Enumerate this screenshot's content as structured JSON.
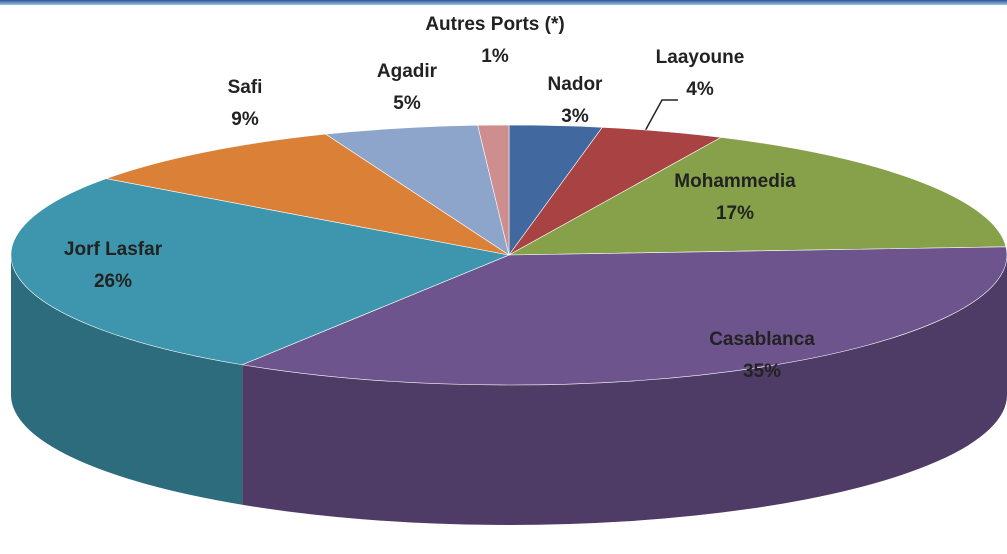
{
  "chart_data": {
    "type": "pie",
    "categories": [
      "Nador",
      "Laayoune",
      "Mohammedia",
      "Casablanca",
      "Jorf Lasfar",
      "Safi",
      "Agadir",
      "Autres Ports (*)"
    ],
    "values": [
      3,
      4,
      17,
      35,
      26,
      9,
      5,
      1
    ],
    "value_labels": [
      "3%",
      "4%",
      "17%",
      "35%",
      "26%",
      "9%",
      "5%",
      "1%"
    ],
    "colors": [
      "#4169a0",
      "#a94343",
      "#86a14a",
      "#6e548d",
      "#3d96ae",
      "#da8137",
      "#8ea5cb",
      "#ce8e8e"
    ]
  }
}
